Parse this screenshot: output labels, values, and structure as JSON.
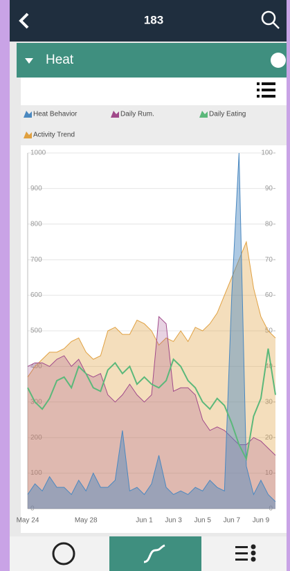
{
  "header": {
    "title": "183"
  },
  "section": {
    "title": "Heat"
  },
  "chart_data": {
    "type": "area",
    "categories": [
      "May 24",
      null,
      null,
      null,
      null,
      null,
      null,
      null,
      "May 28",
      null,
      null,
      null,
      null,
      null,
      null,
      null,
      "Jun 1",
      null,
      null,
      null,
      "Jun 3",
      null,
      null,
      null,
      "Jun 5",
      null,
      null,
      null,
      "Jun 7",
      null,
      null,
      null,
      "Jun 9",
      null,
      null
    ],
    "series": [
      {
        "name": "Heat Behavior",
        "color": "#4a88c0",
        "values": [
          40,
          70,
          50,
          90,
          60,
          60,
          40,
          80,
          50,
          100,
          60,
          60,
          80,
          220,
          50,
          60,
          40,
          70,
          150,
          60,
          40,
          50,
          40,
          60,
          50,
          80,
          60,
          50,
          600,
          1000,
          120,
          40,
          80,
          40,
          20
        ]
      },
      {
        "name": "Daily Rum.",
        "color": "#a04a8a",
        "values": [
          400,
          410,
          410,
          400,
          420,
          430,
          400,
          420,
          380,
          370,
          380,
          320,
          300,
          320,
          350,
          320,
          300,
          320,
          540,
          520,
          330,
          340,
          340,
          320,
          250,
          220,
          230,
          220,
          200,
          180,
          180,
          200,
          190,
          170,
          150
        ]
      },
      {
        "name": "Daily Eating",
        "color": "#5bb87a",
        "values": [
          340,
          300,
          280,
          310,
          360,
          370,
          340,
          400,
          380,
          340,
          330,
          390,
          410,
          380,
          400,
          350,
          370,
          350,
          340,
          360,
          420,
          400,
          360,
          340,
          300,
          280,
          310,
          290,
          240,
          180,
          140,
          260,
          310,
          450,
          320
        ]
      },
      {
        "name": "Activity Trend",
        "color": "#e0a040",
        "values": [
          370,
          400,
          420,
          440,
          440,
          450,
          470,
          480,
          440,
          420,
          430,
          500,
          510,
          490,
          490,
          530,
          520,
          500,
          460,
          480,
          470,
          500,
          470,
          510,
          500,
          520,
          550,
          600,
          650,
          700,
          750,
          620,
          540,
          500,
          480
        ]
      }
    ],
    "ylim": [
      0,
      1000
    ],
    "yticks": [
      0,
      100,
      200,
      300,
      400,
      500,
      600,
      700,
      800,
      900,
      1000
    ],
    "y2lim": [
      0,
      100
    ],
    "y2ticks": [
      0,
      10,
      20,
      30,
      40,
      50,
      60,
      70,
      80,
      90,
      100
    ],
    "grid": true
  }
}
